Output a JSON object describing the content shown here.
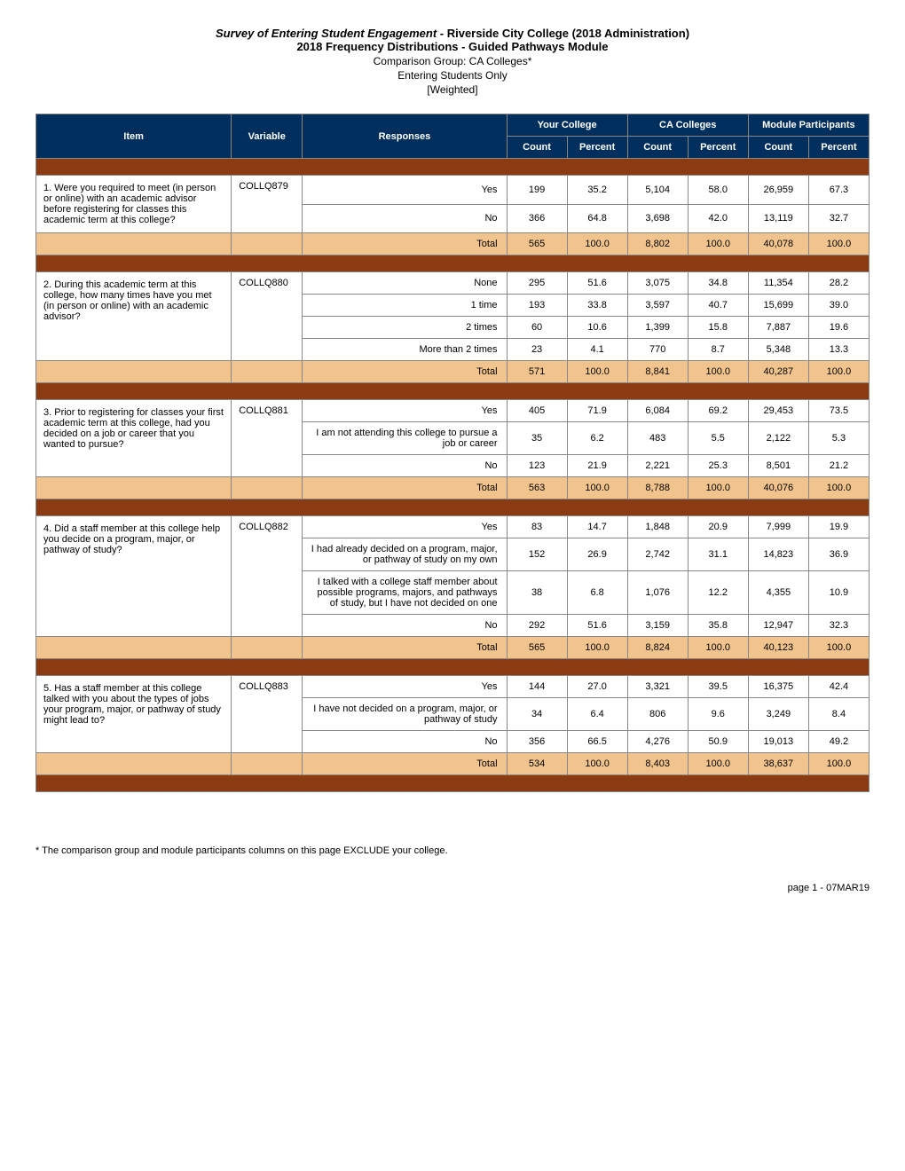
{
  "header": {
    "survey_title": "Survey of Entering Student Engagement",
    "college_admin": " - Riverside City College (2018 Administration)",
    "subtitle": "2018 Frequency Distributions - Guided Pathways Module",
    "comparison": "Comparison Group: CA Colleges*",
    "population": "Entering Students Only",
    "weight": "[Weighted]"
  },
  "columns": {
    "item": "Item",
    "variable": "Variable",
    "responses": "Responses",
    "your_college": "Your College",
    "ca_colleges": "CA Colleges",
    "module_part": "Module Participants",
    "count": "Count",
    "percent": "Percent"
  },
  "questions": [
    {
      "item": "1. Were you required to meet (in person or online) with an academic advisor before registering for classes this academic term at this college?",
      "variable": "COLLQ879",
      "rows": [
        {
          "resp": "Yes",
          "yc_c": "199",
          "yc_p": "35.2",
          "ca_c": "5,104",
          "ca_p": "58.0",
          "m_c": "26,959",
          "m_p": "67.3"
        },
        {
          "resp": "No",
          "yc_c": "366",
          "yc_p": "64.8",
          "ca_c": "3,698",
          "ca_p": "42.0",
          "m_c": "13,119",
          "m_p": "32.7"
        }
      ],
      "total": {
        "resp": "Total",
        "yc_c": "565",
        "yc_p": "100.0",
        "ca_c": "8,802",
        "ca_p": "100.0",
        "m_c": "40,078",
        "m_p": "100.0"
      }
    },
    {
      "item": "2. During this academic term at this college, how many times have you met (in person or online) with an academic advisor?",
      "variable": "COLLQ880",
      "rows": [
        {
          "resp": "None",
          "yc_c": "295",
          "yc_p": "51.6",
          "ca_c": "3,075",
          "ca_p": "34.8",
          "m_c": "11,354",
          "m_p": "28.2"
        },
        {
          "resp": "1 time",
          "yc_c": "193",
          "yc_p": "33.8",
          "ca_c": "3,597",
          "ca_p": "40.7",
          "m_c": "15,699",
          "m_p": "39.0"
        },
        {
          "resp": "2 times",
          "yc_c": "60",
          "yc_p": "10.6",
          "ca_c": "1,399",
          "ca_p": "15.8",
          "m_c": "7,887",
          "m_p": "19.6"
        },
        {
          "resp": "More than 2 times",
          "yc_c": "23",
          "yc_p": "4.1",
          "ca_c": "770",
          "ca_p": "8.7",
          "m_c": "5,348",
          "m_p": "13.3"
        }
      ],
      "total": {
        "resp": "Total",
        "yc_c": "571",
        "yc_p": "100.0",
        "ca_c": "8,841",
        "ca_p": "100.0",
        "m_c": "40,287",
        "m_p": "100.0"
      }
    },
    {
      "item": "3. Prior to registering for classes your first academic term at this college, had you decided on a job or career that you wanted to pursue?",
      "variable": "COLLQ881",
      "rows": [
        {
          "resp": "Yes",
          "yc_c": "405",
          "yc_p": "71.9",
          "ca_c": "6,084",
          "ca_p": "69.2",
          "m_c": "29,453",
          "m_p": "73.5"
        },
        {
          "resp": "I am not attending this college to pursue a job or career",
          "yc_c": "35",
          "yc_p": "6.2",
          "ca_c": "483",
          "ca_p": "5.5",
          "m_c": "2,122",
          "m_p": "5.3"
        },
        {
          "resp": "No",
          "yc_c": "123",
          "yc_p": "21.9",
          "ca_c": "2,221",
          "ca_p": "25.3",
          "m_c": "8,501",
          "m_p": "21.2"
        }
      ],
      "total": {
        "resp": "Total",
        "yc_c": "563",
        "yc_p": "100.0",
        "ca_c": "8,788",
        "ca_p": "100.0",
        "m_c": "40,076",
        "m_p": "100.0"
      }
    },
    {
      "item": "4. Did a staff member at this college help you decide on a program, major, or pathway of study?",
      "variable": "COLLQ882",
      "rows": [
        {
          "resp": "Yes",
          "yc_c": "83",
          "yc_p": "14.7",
          "ca_c": "1,848",
          "ca_p": "20.9",
          "m_c": "7,999",
          "m_p": "19.9"
        },
        {
          "resp": "I had already decided on a program, major, or pathway of study on my own",
          "yc_c": "152",
          "yc_p": "26.9",
          "ca_c": "2,742",
          "ca_p": "31.1",
          "m_c": "14,823",
          "m_p": "36.9"
        },
        {
          "resp": "I talked with a college staff member about possible programs, majors, and pathways of study, but I have not decided on one",
          "yc_c": "38",
          "yc_p": "6.8",
          "ca_c": "1,076",
          "ca_p": "12.2",
          "m_c": "4,355",
          "m_p": "10.9"
        },
        {
          "resp": "No",
          "yc_c": "292",
          "yc_p": "51.6",
          "ca_c": "3,159",
          "ca_p": "35.8",
          "m_c": "12,947",
          "m_p": "32.3"
        }
      ],
      "total": {
        "resp": "Total",
        "yc_c": "565",
        "yc_p": "100.0",
        "ca_c": "8,824",
        "ca_p": "100.0",
        "m_c": "40,123",
        "m_p": "100.0"
      }
    },
    {
      "item": "5. Has a staff member at this college talked with you about the types of jobs your program, major, or pathway of study might lead to?",
      "variable": "COLLQ883",
      "rows": [
        {
          "resp": "Yes",
          "yc_c": "144",
          "yc_p": "27.0",
          "ca_c": "3,321",
          "ca_p": "39.5",
          "m_c": "16,375",
          "m_p": "42.4"
        },
        {
          "resp": "I have not decided on a program, major, or pathway of study",
          "yc_c": "34",
          "yc_p": "6.4",
          "ca_c": "806",
          "ca_p": "9.6",
          "m_c": "3,249",
          "m_p": "8.4"
        },
        {
          "resp": "No",
          "yc_c": "356",
          "yc_p": "66.5",
          "ca_c": "4,276",
          "ca_p": "50.9",
          "m_c": "19,013",
          "m_p": "49.2"
        }
      ],
      "total": {
        "resp": "Total",
        "yc_c": "534",
        "yc_p": "100.0",
        "ca_c": "8,403",
        "ca_p": "100.0",
        "m_c": "38,637",
        "m_p": "100.0"
      }
    }
  ],
  "footnote": "* The comparison group and module participants columns on this page EXCLUDE your college.",
  "pagenum": "page 1 - 07MAR19",
  "colors": {
    "header_bg": "#002e5d",
    "total_bg": "#f2c48d",
    "sep_bg": "#8a3b12",
    "border": "#888888"
  }
}
